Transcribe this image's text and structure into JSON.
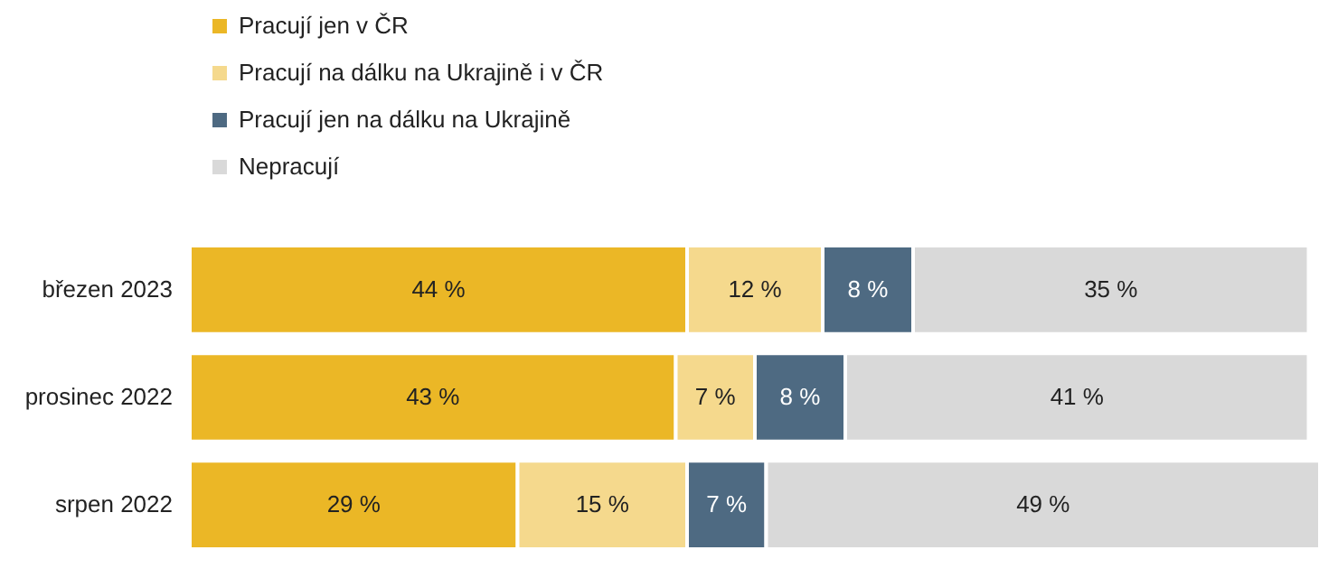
{
  "chart_data": {
    "type": "bar",
    "orientation": "horizontal",
    "stacked": true,
    "legend": "top left",
    "categories": [
      "březen 2023",
      "prosinec 2022",
      "srpen 2022"
    ],
    "series": [
      {
        "name": "Pracují jen v ČR",
        "color": "#ebb726",
        "values": [
          44,
          43,
          29
        ],
        "value_labels": [
          "44 %",
          "43 %",
          "29 %"
        ]
      },
      {
        "name": "Pracují na dálku na Ukrajině i v ČR",
        "color": "#f5d98d",
        "values": [
          12,
          7,
          15
        ],
        "value_labels": [
          "12 %",
          "7 %",
          "15 %"
        ]
      },
      {
        "name": "Pracují jen na dálku na Ukrajině",
        "color": "#4e6a82",
        "values": [
          8,
          8,
          7
        ],
        "value_labels": [
          "8 %",
          "8 %",
          "7 %"
        ]
      },
      {
        "name": "Nepracují",
        "color": "#d9d9d9",
        "values": [
          35,
          41,
          49
        ],
        "value_labels": [
          "35 %",
          "41 %",
          "49 %"
        ]
      }
    ]
  }
}
